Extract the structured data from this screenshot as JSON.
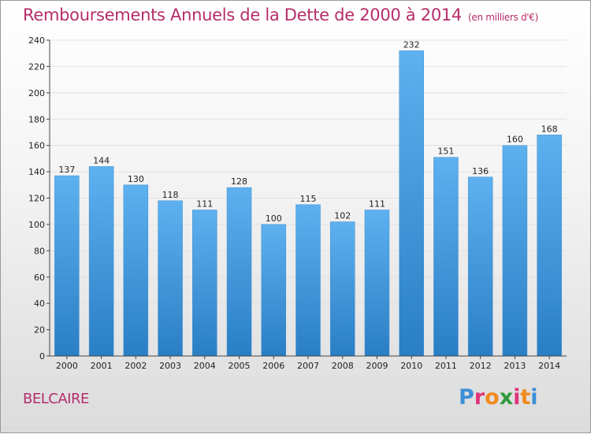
{
  "title": "Remboursements Annuels de la Dette de 2000 à 2014",
  "unit": "(en milliers d'€)",
  "commune": "BELCAIRE",
  "logo": {
    "letters": [
      "P",
      "r",
      "o",
      "x",
      "i",
      "t",
      "i"
    ],
    "colors": [
      "#3b8fd6",
      "#e0357a",
      "#f08a1c",
      "#2f9a3b",
      "#e0357a",
      "#f08a1c",
      "#3b8fd6"
    ]
  },
  "colors": {
    "bar_top": "#5eb1ef",
    "bar_bottom": "#2a7ec4",
    "title": "#b52d6a",
    "grid": "#e2e2e2"
  },
  "chart_data": {
    "type": "bar",
    "title": "Remboursements Annuels de la Dette de 2000 à 2014",
    "categories": [
      "2000",
      "2001",
      "2002",
      "2003",
      "2004",
      "2005",
      "2006",
      "2007",
      "2008",
      "2009",
      "2010",
      "2011",
      "2012",
      "2013",
      "2014"
    ],
    "values": [
      137,
      144,
      130,
      118,
      111,
      128,
      100,
      115,
      102,
      111,
      232,
      151,
      136,
      160,
      168
    ],
    "ylim": [
      0,
      240
    ],
    "yticks": [
      0,
      20,
      40,
      60,
      80,
      100,
      120,
      140,
      160,
      180,
      200,
      220,
      240
    ],
    "grid": true,
    "xlabel": "",
    "ylabel": ""
  }
}
